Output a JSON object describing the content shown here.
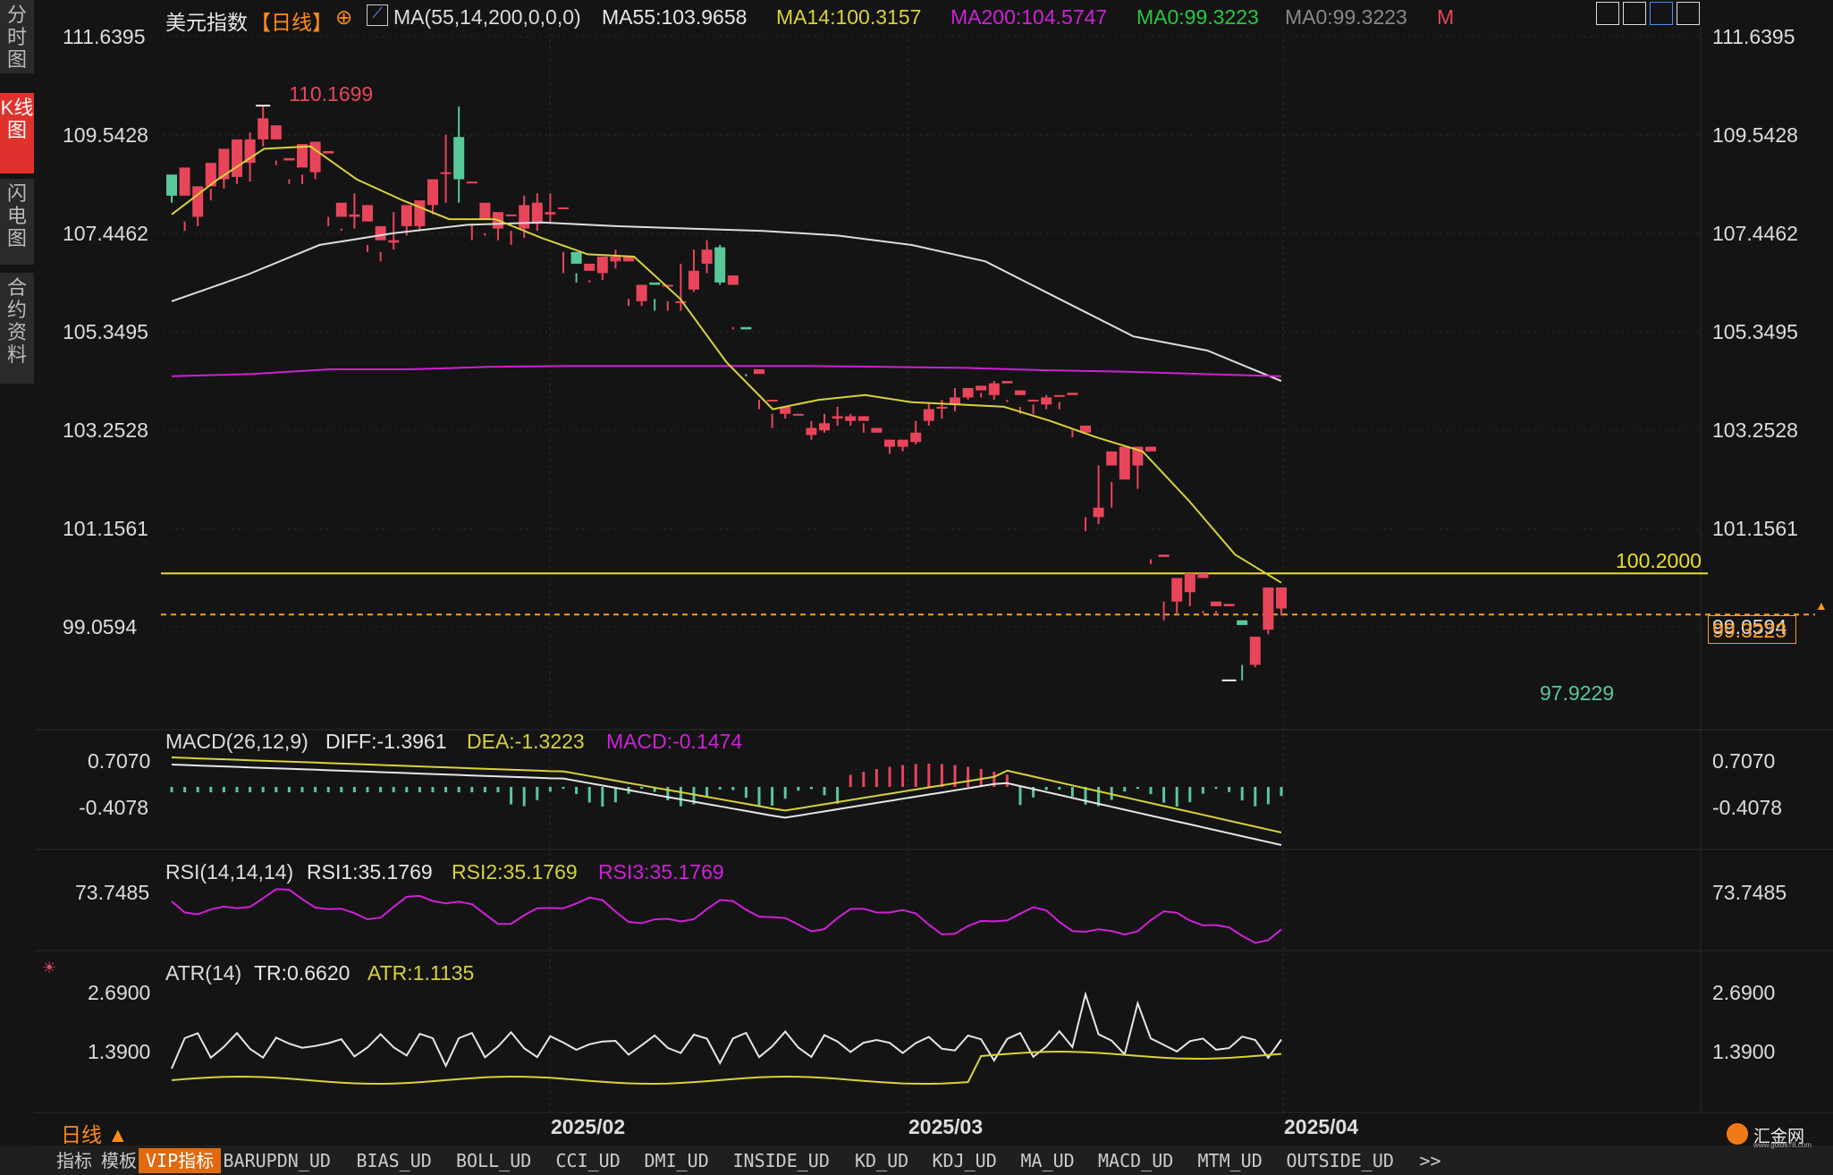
{
  "header": {
    "instrument": "美元指数",
    "period": "【日线】",
    "ma_label": "MA(55,14,200,0,0,0)",
    "ma55": "MA55:103.9658",
    "ma14": "MA14:100.3157",
    "ma200": "MA200:104.5747",
    "ma0a": "MA0:99.3223",
    "ma0b": "MA0:99.3223",
    "m": "M"
  },
  "sidebar": [
    {
      "label": "分时图"
    },
    {
      "label": "K线图"
    },
    {
      "label": "闪电图"
    },
    {
      "label": "合约资料"
    }
  ],
  "price_axis": [
    "111.6395",
    "109.5428",
    "107.4462",
    "105.3495",
    "103.2528",
    "101.1561",
    "99.0594"
  ],
  "annotations": {
    "high": "110.1699",
    "low": "97.9229",
    "hline": "100.2000",
    "last_price": "99.3223"
  },
  "macd": {
    "header": "MACD(26,12,9)",
    "diff": "DIFF:-1.3961",
    "dea": "DEA:-1.3223",
    "macd": "MACD:-0.1474",
    "ticks": [
      "0.7070",
      "-0.4078"
    ]
  },
  "rsi": {
    "header": "RSI(14,14,14)",
    "rsi1": "RSI1:35.1769",
    "rsi2": "RSI2:35.1769",
    "rsi3": "RSI3:35.1769",
    "ticks": [
      "73.7485"
    ]
  },
  "atr": {
    "header": "ATR(14)",
    "tr": "TR:0.6620",
    "atr": "ATR:1.1135",
    "ticks": [
      "2.6900",
      "1.3900"
    ]
  },
  "x_axis": [
    "2025/02",
    "2025/03",
    "2025/04"
  ],
  "period_selector": "日线 ▲",
  "toolbar": [
    "指标",
    "模板",
    "VIP指标",
    "BARUPDN_UD",
    "BIAS_UD",
    "BOLL_UD",
    "CCI_UD",
    "DMI_UD",
    "INSIDE_UD",
    "KD_UD",
    "KDJ_UD",
    "MA_UD",
    "MACD_UD",
    "MTM_UD",
    "OUTSIDE_UD",
    ">>"
  ],
  "brand": "汇金网",
  "brand_url": "www.gold678.com",
  "colors": {
    "background": "#141414",
    "up": "#e8455a",
    "down": "#58c89a",
    "ma55": "#dddddd",
    "ma14": "#d8d23a",
    "ma200": "#d020d8",
    "hline": "#e8e020",
    "last_price": "#ff9c1a"
  },
  "chart_data": {
    "type": "candlestick",
    "title": "美元指数【日线】",
    "ylim": [
      97.5,
      111.9
    ],
    "y_ticks": [
      111.6395,
      109.5428,
      107.4462,
      105.3495,
      103.2528,
      101.1561,
      99.0594
    ],
    "x_labels": [
      "2025/02",
      "2025/03",
      "2025/04"
    ],
    "candles": [
      [
        108.7,
        108.25,
        108.55,
        108.1
      ],
      [
        108.25,
        108.85,
        107.7,
        107.5
      ],
      [
        107.8,
        108.45,
        108.05,
        107.6
      ],
      [
        108.45,
        108.95,
        108.4,
        108.15
      ],
      [
        108.6,
        109.25,
        108.65,
        108.4
      ],
      [
        108.65,
        109.45,
        108.95,
        108.5
      ],
      [
        108.95,
        109.45,
        109.6,
        108.55
      ],
      [
        109.45,
        109.9,
        110.17,
        109.3
      ],
      [
        109.45,
        109.75,
        109.0,
        108.9
      ],
      [
        109.0,
        109.05,
        108.6,
        108.5
      ],
      [
        108.85,
        109.35,
        108.7,
        108.5
      ],
      [
        108.75,
        109.4,
        109.15,
        108.6
      ],
      [
        109.15,
        109.2,
        107.8,
        107.6
      ],
      [
        107.8,
        108.1,
        107.55,
        107.5
      ],
      [
        107.8,
        107.85,
        108.3,
        107.55
      ],
      [
        107.7,
        108.05,
        107.2,
        107.05
      ],
      [
        107.3,
        107.6,
        107.05,
        106.85
      ],
      [
        107.25,
        107.3,
        107.9,
        107.1
      ],
      [
        107.6,
        108.05,
        107.6,
        107.4
      ],
      [
        107.6,
        108.15,
        107.85,
        107.5
      ],
      [
        108.05,
        108.6,
        108.35,
        107.85
      ],
      [
        108.75,
        108.75,
        109.55,
        108.1
      ],
      [
        109.5,
        108.6,
        110.15,
        108.1
      ],
      [
        108.55,
        108.55,
        107.65,
        107.3
      ],
      [
        107.75,
        108.1,
        107.45,
        107.4
      ],
      [
        107.55,
        107.9,
        107.6,
        107.3
      ],
      [
        107.85,
        107.85,
        107.5,
        107.2
      ],
      [
        107.55,
        108.05,
        108.25,
        107.35
      ],
      [
        107.65,
        108.1,
        108.3,
        107.5
      ],
      [
        107.85,
        107.9,
        108.3,
        107.65
      ],
      [
        108.0,
        108.0,
        107.05,
        106.6
      ],
      [
        107.05,
        106.8,
        106.6,
        106.4
      ],
      [
        106.65,
        106.8,
        106.45,
        106.4
      ],
      [
        106.6,
        106.95,
        106.65,
        106.45
      ],
      [
        106.85,
        106.95,
        107.1,
        106.7
      ],
      [
        106.85,
        106.95,
        106.05,
        105.9
      ],
      [
        106.0,
        106.35,
        106.0,
        105.9
      ],
      [
        106.4,
        106.35,
        106.05,
        105.8
      ],
      [
        106.35,
        106.35,
        106.0,
        105.8
      ],
      [
        106.0,
        106.0,
        106.8,
        105.8
      ],
      [
        106.25,
        106.65,
        107.1,
        106.2
      ],
      [
        106.8,
        107.1,
        107.3,
        106.6
      ],
      [
        107.15,
        106.4,
        107.2,
        106.35
      ],
      [
        106.35,
        106.55,
        105.45,
        105.4
      ],
      [
        105.45,
        105.4,
        104.45,
        104.4
      ],
      [
        104.45,
        104.55,
        103.9,
        103.7
      ],
      [
        103.9,
        103.9,
        103.6,
        103.3
      ],
      [
        103.6,
        103.75,
        103.6,
        103.5
      ],
      [
        103.6,
        103.6,
        103.2,
        103.2
      ],
      [
        103.15,
        103.3,
        103.45,
        103.05
      ],
      [
        103.25,
        103.4,
        103.6,
        103.2
      ],
      [
        103.5,
        103.55,
        103.75,
        103.35
      ],
      [
        103.45,
        103.55,
        103.6,
        103.35
      ],
      [
        103.45,
        103.55,
        103.4,
        103.2
      ],
      [
        103.2,
        103.3,
        102.85,
        102.85
      ],
      [
        102.9,
        103.05,
        103.0,
        102.75
      ],
      [
        102.9,
        103.05,
        103.0,
        102.8
      ],
      [
        103.0,
        103.2,
        103.45,
        102.95
      ],
      [
        103.45,
        103.7,
        103.85,
        103.35
      ],
      [
        103.75,
        103.75,
        103.9,
        103.5
      ],
      [
        103.8,
        103.95,
        104.15,
        103.65
      ],
      [
        103.95,
        104.15,
        104.1,
        103.9
      ],
      [
        104.1,
        104.2,
        104.05,
        103.95
      ],
      [
        104.0,
        104.25,
        104.3,
        103.9
      ],
      [
        104.25,
        104.3,
        103.9,
        103.85
      ],
      [
        104.0,
        104.1,
        103.75,
        103.6
      ],
      [
        103.9,
        103.9,
        103.8,
        103.6
      ],
      [
        103.8,
        103.95,
        104.0,
        103.7
      ],
      [
        104.0,
        104.0,
        103.85,
        103.7
      ],
      [
        104.0,
        104.05,
        103.25,
        103.1
      ],
      [
        103.2,
        103.35,
        101.4,
        101.1
      ],
      [
        101.4,
        101.6,
        102.5,
        101.25
      ],
      [
        102.5,
        102.8,
        102.15,
        101.6
      ],
      [
        102.2,
        102.9,
        102.55,
        102.2
      ],
      [
        102.5,
        102.9,
        102.9,
        102.0
      ],
      [
        102.8,
        102.9,
        100.5,
        100.4
      ],
      [
        100.55,
        100.6,
        99.6,
        99.2
      ],
      [
        99.6,
        100.1,
        100.0,
        99.35
      ],
      [
        99.8,
        100.2,
        100.15,
        99.5
      ],
      [
        100.1,
        100.2,
        99.4,
        99.35
      ],
      [
        99.5,
        99.6,
        99.4,
        99.3
      ],
      [
        99.5,
        99.55,
        99.3,
        99.3
      ],
      [
        99.2,
        99.1,
        98.25,
        97.92
      ],
      [
        98.25,
        98.85,
        98.4,
        98.2
      ],
      [
        99.0,
        99.9,
        99.85,
        98.9
      ],
      [
        99.45,
        99.9,
        99.83,
        99.3
      ]
    ],
    "ma55": [
      106.0,
      106.55,
      107.2,
      107.45,
      107.63,
      107.68,
      107.6,
      107.55,
      107.5,
      107.4,
      107.2,
      106.85,
      106.05,
      105.25,
      104.95,
      104.3
    ],
    "ma14": [
      107.85,
      108.6,
      109.25,
      109.3,
      108.6,
      108.15,
      107.75,
      107.75,
      107.35,
      107.0,
      106.95,
      106.05,
      104.7,
      103.7,
      103.9,
      104.0,
      103.85,
      103.8,
      103.75,
      103.45,
      103.1,
      102.8,
      101.75,
      100.6,
      100.0
    ],
    "ma200": [
      104.4,
      104.45,
      104.55,
      104.55,
      104.6,
      104.62,
      104.62,
      104.62,
      104.62,
      104.6,
      104.58,
      104.53,
      104.5,
      104.45,
      104.4
    ]
  }
}
